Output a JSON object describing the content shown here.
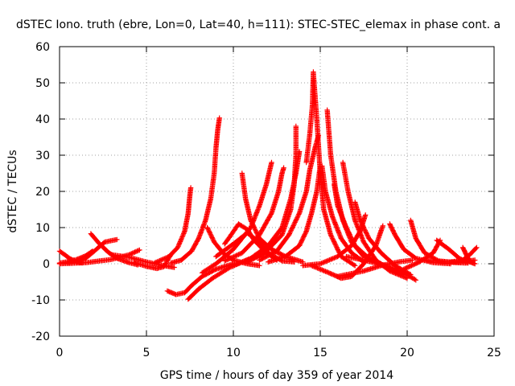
{
  "chart_data": {
    "type": "scatter",
    "title": "dSTEC Iono. truth (ebre, Lon=0, Lat=40, h=111): STEC-STEC_elemax in phase cont. a",
    "xlabel": "GPS time / hours of day 359 of year 2014",
    "ylabel": "dSTEC  / TECUs",
    "xlim": [
      0,
      25
    ],
    "ylim": [
      -20,
      60
    ],
    "xticks": [
      0,
      5,
      10,
      15,
      20,
      25
    ],
    "yticks": [
      -20,
      -10,
      0,
      10,
      20,
      30,
      40,
      50,
      60
    ],
    "grid": true,
    "marker": "+",
    "color": "#ff0000",
    "series": [
      {
        "points": [
          [
            0.0,
            3.5
          ],
          [
            0.3,
            2.5
          ],
          [
            0.6,
            1.4
          ],
          [
            1.0,
            0.6
          ],
          [
            1.3,
            0.2
          ]
        ]
      },
      {
        "points": [
          [
            0.0,
            0.2
          ],
          [
            0.5,
            0.6
          ],
          [
            1.0,
            1.2
          ],
          [
            1.5,
            2.2
          ],
          [
            1.9,
            3.5
          ]
        ]
      },
      {
        "points": [
          [
            0.5,
            0.3
          ],
          [
            1.0,
            0.5
          ],
          [
            1.5,
            1.5
          ],
          [
            2.0,
            3.5
          ],
          [
            2.6,
            6.0
          ],
          [
            3.3,
            6.7
          ]
        ]
      },
      {
        "points": [
          [
            1.8,
            8.3
          ],
          [
            2.3,
            5.5
          ],
          [
            2.8,
            3.2
          ],
          [
            3.3,
            1.5
          ],
          [
            4.0,
            0.3
          ],
          [
            4.5,
            -0.3
          ]
        ]
      },
      {
        "points": [
          [
            0.0,
            0.0
          ],
          [
            1.5,
            0.3
          ],
          [
            3.0,
            1.2
          ],
          [
            4.0,
            2.5
          ],
          [
            4.6,
            3.8
          ]
        ]
      },
      {
        "points": [
          [
            3.0,
            2.5
          ],
          [
            4.0,
            1.8
          ],
          [
            5.0,
            0.5
          ],
          [
            6.0,
            -0.5
          ],
          [
            6.6,
            -1.0
          ]
        ]
      },
      {
        "points": [
          [
            4.3,
            0.3
          ],
          [
            5.0,
            -0.7
          ],
          [
            5.6,
            -1.3
          ],
          [
            6.0,
            -0.8
          ],
          [
            6.4,
            2.5
          ]
        ]
      },
      {
        "points": [
          [
            6.2,
            -7.5
          ],
          [
            6.7,
            -8.5
          ],
          [
            7.2,
            -8.0
          ],
          [
            7.6,
            -6.0
          ],
          [
            8.2,
            -3.5
          ],
          [
            9.0,
            -1.5
          ],
          [
            10.0,
            0.0
          ]
        ]
      },
      {
        "points": [
          [
            7.4,
            -9.8
          ],
          [
            8.0,
            -7.0
          ],
          [
            8.8,
            -4.0
          ],
          [
            9.8,
            -1.0
          ],
          [
            11.0,
            1.5
          ],
          [
            12.0,
            3.0
          ]
        ]
      },
      {
        "points": [
          [
            5.5,
            0.3
          ],
          [
            6.3,
            2.0
          ],
          [
            6.8,
            4.5
          ],
          [
            7.2,
            9.0
          ],
          [
            7.4,
            14.0
          ],
          [
            7.5,
            19.0
          ],
          [
            7.55,
            21.0
          ]
        ]
      },
      {
        "points": [
          [
            6.4,
            0.2
          ],
          [
            7.0,
            1.0
          ],
          [
            7.6,
            3.5
          ],
          [
            8.0,
            7.0
          ],
          [
            8.4,
            12.0
          ],
          [
            8.7,
            18.0
          ],
          [
            8.9,
            25.0
          ],
          [
            9.0,
            32.0
          ],
          [
            9.1,
            37.0
          ],
          [
            9.2,
            40.3
          ]
        ]
      },
      {
        "points": [
          [
            8.5,
            10.0
          ],
          [
            8.9,
            6.0
          ],
          [
            9.4,
            3.0
          ],
          [
            10.0,
            1.0
          ],
          [
            10.8,
            0.0
          ],
          [
            11.5,
            -0.5
          ]
        ]
      },
      {
        "points": [
          [
            9.0,
            2.0
          ],
          [
            10.0,
            5.5
          ],
          [
            10.8,
            8.5
          ],
          [
            11.5,
            6.0
          ],
          [
            12.0,
            3.0
          ],
          [
            12.8,
            0.8
          ],
          [
            13.5,
            0.5
          ]
        ]
      },
      {
        "points": [
          [
            9.5,
            5.5
          ],
          [
            9.8,
            7.5
          ],
          [
            10.3,
            11.0
          ],
          [
            10.8,
            9.5
          ],
          [
            11.2,
            6.5
          ],
          [
            11.8,
            3.5
          ],
          [
            12.5,
            1.0
          ]
        ]
      },
      {
        "points": [
          [
            10.5,
            25.0
          ],
          [
            10.7,
            18.0
          ],
          [
            11.0,
            12.0
          ],
          [
            11.5,
            7.0
          ],
          [
            12.2,
            4.0
          ],
          [
            13.0,
            2.0
          ],
          [
            14.0,
            0.5
          ]
        ]
      },
      {
        "points": [
          [
            8.2,
            -2.5
          ],
          [
            9.0,
            0.0
          ],
          [
            10.0,
            4.0
          ],
          [
            11.0,
            10.0
          ],
          [
            11.5,
            16.0
          ],
          [
            11.9,
            22.0
          ],
          [
            12.2,
            28.0
          ]
        ]
      },
      {
        "points": [
          [
            9.5,
            0.8
          ],
          [
            10.5,
            3.0
          ],
          [
            11.5,
            8.0
          ],
          [
            12.2,
            14.0
          ],
          [
            12.6,
            20.0
          ],
          [
            12.8,
            25.0
          ],
          [
            12.9,
            26.5
          ]
        ]
      },
      {
        "points": [
          [
            10.0,
            -0.5
          ],
          [
            11.0,
            1.5
          ],
          [
            12.0,
            5.0
          ],
          [
            12.8,
            10.0
          ],
          [
            13.3,
            18.0
          ],
          [
            13.6,
            25.0
          ],
          [
            13.8,
            31.0
          ]
        ]
      },
      {
        "points": [
          [
            10.8,
            0.5
          ],
          [
            11.8,
            3.0
          ],
          [
            12.8,
            8.0
          ],
          [
            13.3,
            15.0
          ],
          [
            13.5,
            22.0
          ],
          [
            13.6,
            30.0
          ],
          [
            13.6,
            38.0
          ]
        ]
      },
      {
        "points": [
          [
            11.5,
            1.0
          ],
          [
            12.5,
            3.5
          ],
          [
            13.2,
            8.0
          ],
          [
            13.8,
            14.0
          ],
          [
            14.2,
            20.0
          ],
          [
            14.4,
            26.0
          ],
          [
            14.7,
            32.0
          ],
          [
            14.9,
            35.5
          ]
        ]
      },
      {
        "points": [
          [
            12.0,
            0.5
          ],
          [
            13.0,
            2.0
          ],
          [
            13.8,
            5.0
          ],
          [
            14.2,
            9.0
          ],
          [
            14.5,
            14.0
          ],
          [
            14.8,
            20.0
          ],
          [
            15.0,
            27.0
          ]
        ]
      },
      {
        "points": [
          [
            14.2,
            28.0
          ],
          [
            14.4,
            36.0
          ],
          [
            14.55,
            44.0
          ],
          [
            14.6,
            53.0
          ],
          [
            14.8,
            40.0
          ],
          [
            15.0,
            25.0
          ],
          [
            15.2,
            15.0
          ],
          [
            15.6,
            8.0
          ],
          [
            16.2,
            2.0
          ],
          [
            17.0,
            -0.5
          ]
        ]
      },
      {
        "points": [
          [
            15.4,
            42.5
          ],
          [
            15.6,
            30.0
          ],
          [
            15.9,
            20.0
          ],
          [
            16.3,
            12.0
          ],
          [
            16.8,
            6.0
          ],
          [
            17.5,
            2.0
          ],
          [
            18.5,
            0.0
          ]
        ]
      },
      {
        "points": [
          [
            15.1,
            27.0
          ],
          [
            15.3,
            20.0
          ],
          [
            15.7,
            13.0
          ],
          [
            16.2,
            7.0
          ],
          [
            16.8,
            3.0
          ],
          [
            17.5,
            0.5
          ]
        ]
      },
      {
        "points": [
          [
            15.8,
            22.0
          ],
          [
            16.0,
            16.0
          ],
          [
            16.5,
            10.0
          ],
          [
            17.0,
            5.0
          ],
          [
            17.8,
            1.5
          ],
          [
            18.8,
            -1.0
          ],
          [
            19.8,
            -3.0
          ]
        ]
      },
      {
        "points": [
          [
            16.3,
            28.0
          ],
          [
            16.6,
            20.0
          ],
          [
            17.0,
            12.0
          ],
          [
            17.5,
            6.0
          ],
          [
            18.2,
            1.0
          ],
          [
            19.0,
            -2.0
          ],
          [
            20.0,
            -4.0
          ]
        ]
      },
      {
        "points": [
          [
            17.0,
            17.0
          ],
          [
            17.3,
            12.0
          ],
          [
            17.8,
            7.0
          ],
          [
            18.5,
            3.0
          ],
          [
            19.3,
            -0.5
          ],
          [
            20.2,
            -3.0
          ]
        ]
      },
      {
        "points": [
          [
            14.0,
            -0.5
          ],
          [
            15.0,
            0.0
          ],
          [
            16.0,
            2.0
          ],
          [
            16.8,
            5.0
          ],
          [
            17.3,
            9.0
          ],
          [
            17.6,
            13.5
          ]
        ]
      },
      {
        "points": [
          [
            14.5,
            -0.5
          ],
          [
            15.5,
            -2.5
          ],
          [
            16.2,
            -4.0
          ],
          [
            16.8,
            -3.5
          ],
          [
            17.5,
            0.0
          ],
          [
            18.2,
            5.0
          ],
          [
            18.6,
            10.5
          ]
        ]
      },
      {
        "points": [
          [
            16.0,
            -3.5
          ],
          [
            17.5,
            -2.0
          ],
          [
            18.5,
            -0.5
          ],
          [
            19.5,
            0.5
          ],
          [
            20.3,
            1.0
          ]
        ]
      },
      {
        "points": [
          [
            16.5,
            2.0
          ],
          [
            17.5,
            1.0
          ],
          [
            18.8,
            -0.5
          ],
          [
            19.8,
            -2.5
          ],
          [
            20.5,
            -4.5
          ]
        ]
      },
      {
        "points": [
          [
            19.0,
            11.0
          ],
          [
            19.3,
            8.0
          ],
          [
            19.8,
            4.0
          ],
          [
            20.5,
            1.5
          ],
          [
            21.5,
            0.3
          ],
          [
            22.5,
            0.0
          ]
        ]
      },
      {
        "points": [
          [
            20.2,
            12.0
          ],
          [
            20.5,
            7.0
          ],
          [
            21.0,
            3.0
          ],
          [
            21.8,
            0.8
          ],
          [
            22.8,
            0.3
          ],
          [
            23.5,
            0.2
          ]
        ]
      },
      {
        "points": [
          [
            19.8,
            -1.5
          ],
          [
            20.7,
            0.5
          ],
          [
            21.5,
            3.0
          ],
          [
            21.9,
            6.5
          ]
        ]
      },
      {
        "points": [
          [
            21.7,
            6.5
          ],
          [
            22.4,
            4.0
          ],
          [
            23.0,
            1.5
          ],
          [
            23.5,
            0.3
          ]
        ]
      },
      {
        "points": [
          [
            23.2,
            4.5
          ],
          [
            23.4,
            2.5
          ],
          [
            23.6,
            0.5
          ],
          [
            23.9,
            0.0
          ]
        ]
      },
      {
        "points": [
          [
            22.5,
            0.5
          ],
          [
            23.2,
            1.0
          ],
          [
            23.6,
            2.5
          ],
          [
            24.0,
            4.5
          ]
        ]
      },
      {
        "points": [
          [
            21.0,
            1.0
          ],
          [
            22.0,
            0.5
          ],
          [
            23.0,
            0.5
          ],
          [
            23.9,
            1.0
          ]
        ]
      }
    ]
  }
}
